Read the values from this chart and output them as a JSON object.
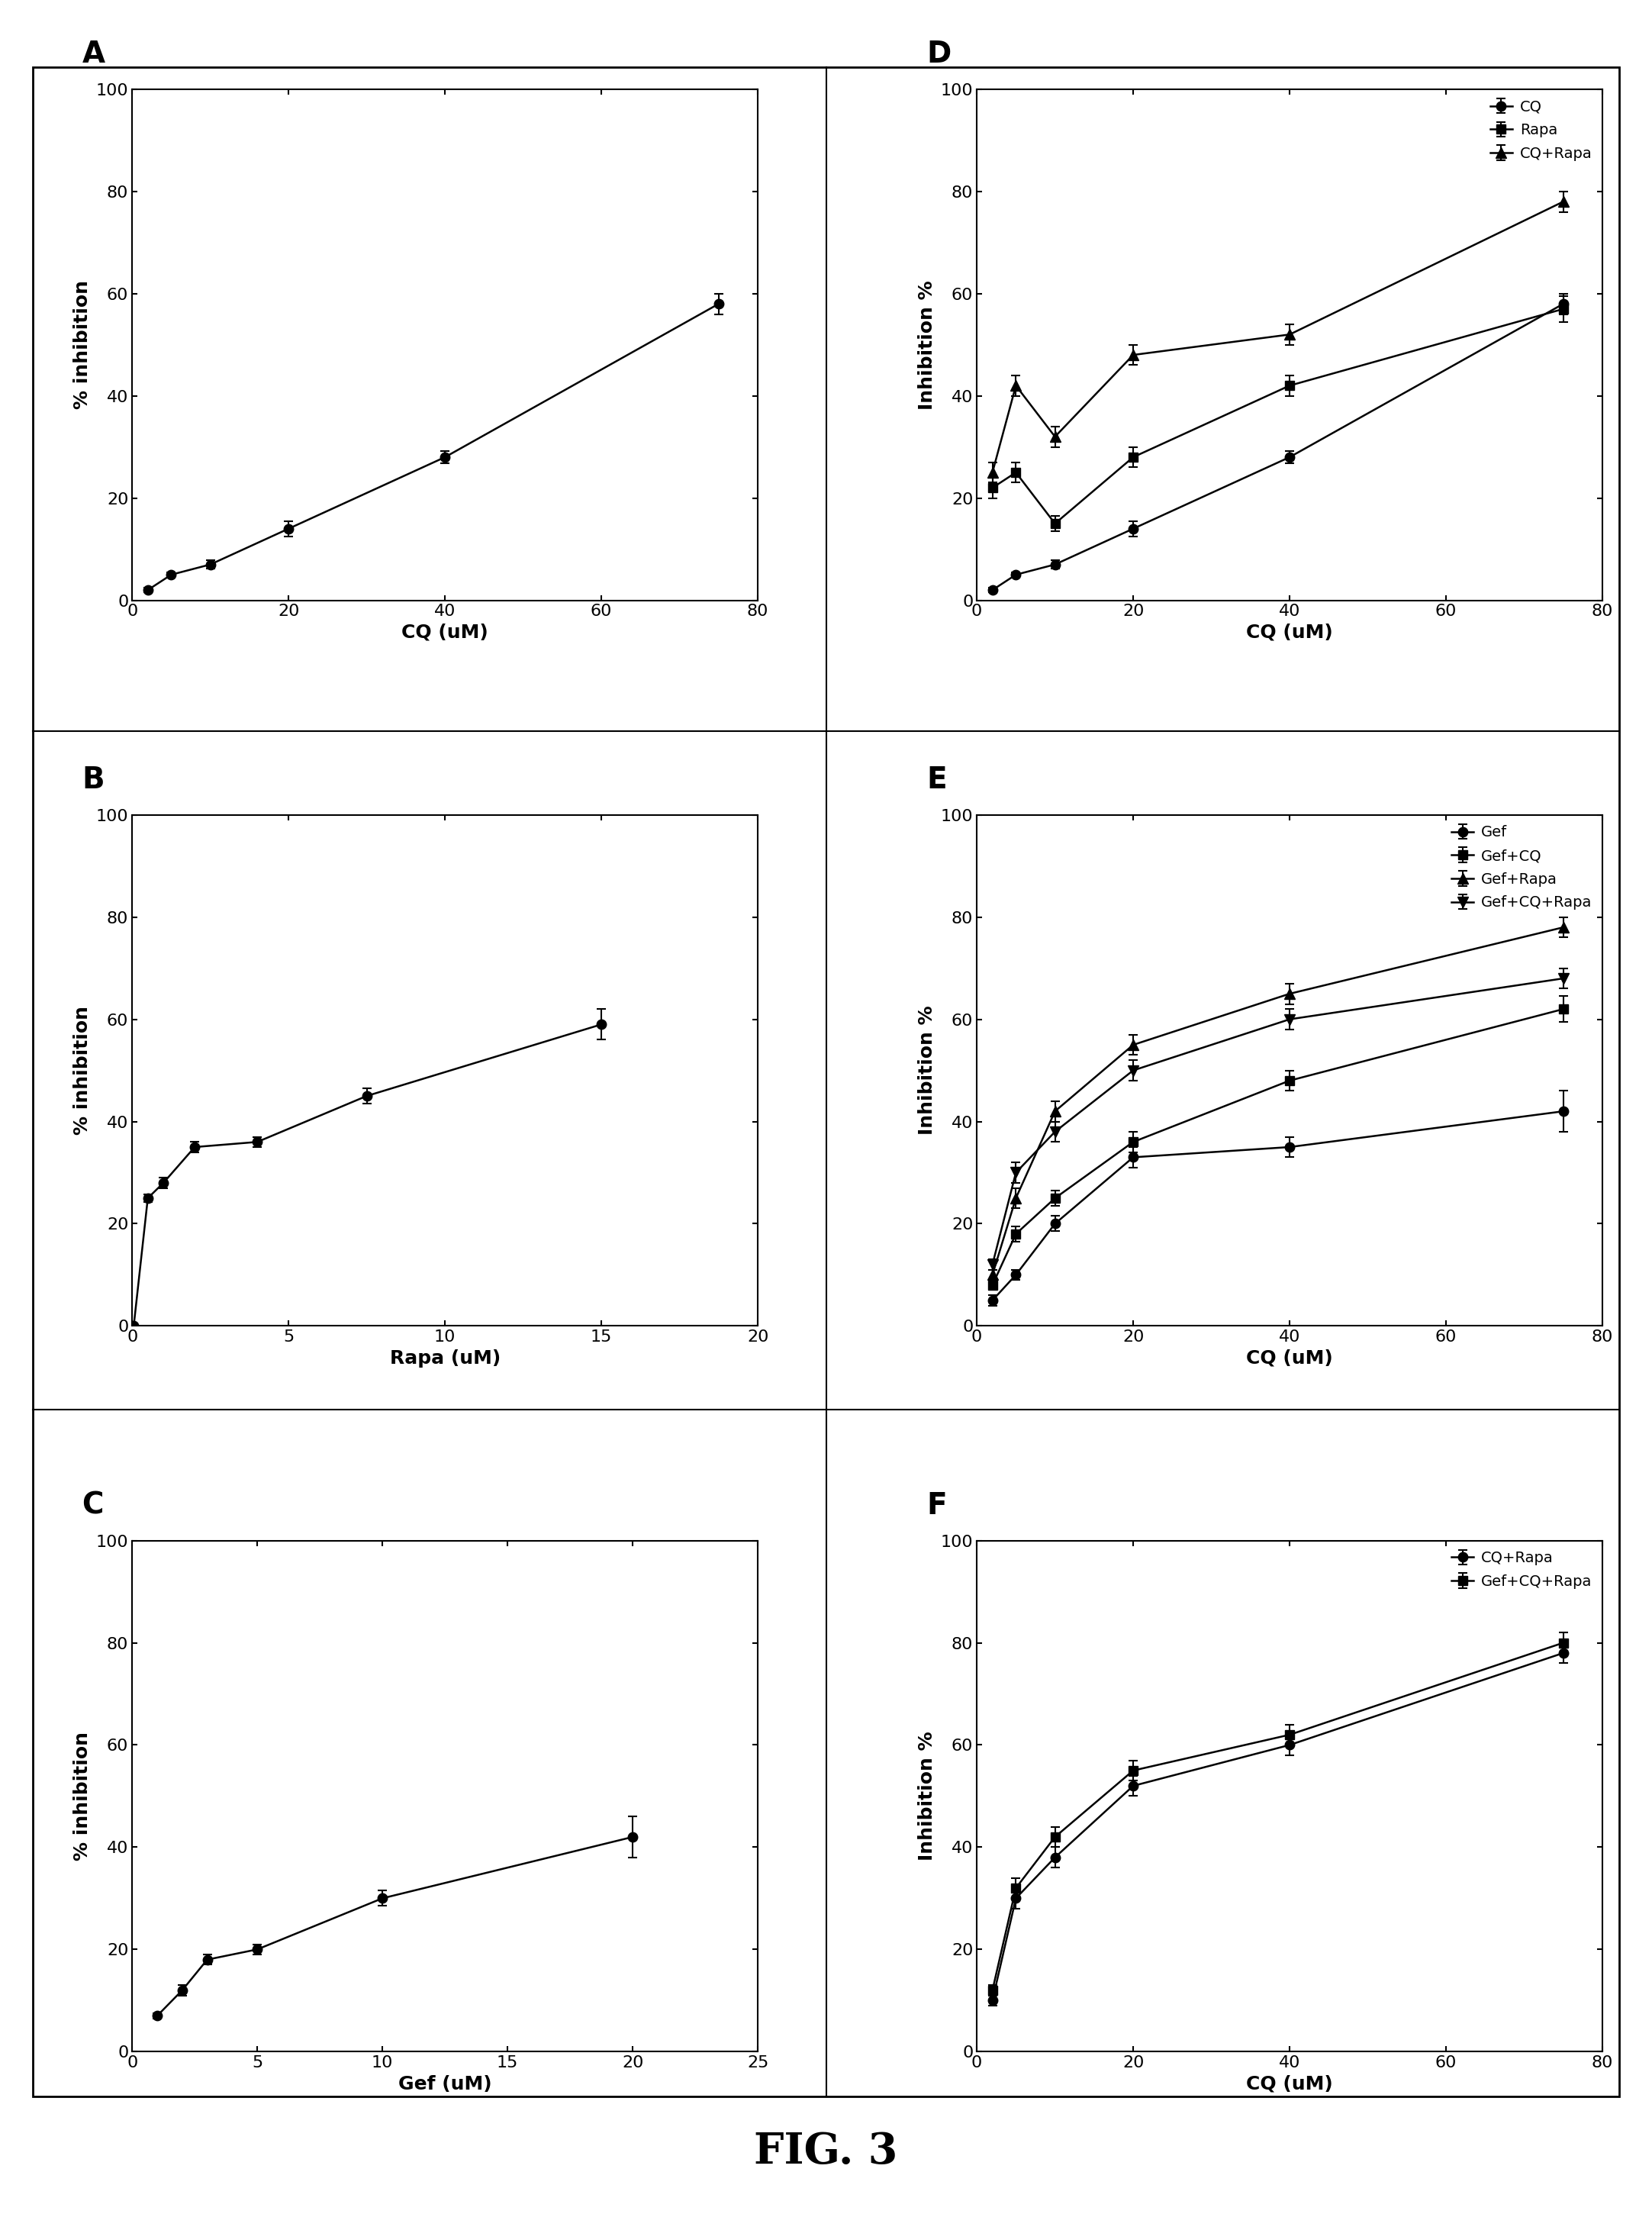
{
  "panel_A": {
    "label": "A",
    "xlabel": "CQ (uM)",
    "ylabel": "% inhibition",
    "xlim": [
      0,
      80
    ],
    "ylim": [
      0,
      100
    ],
    "xticks": [
      0,
      20,
      40,
      60,
      80
    ],
    "yticks": [
      0,
      20,
      40,
      60,
      80,
      100
    ],
    "series": [
      {
        "x": [
          2,
          5,
          10,
          20,
          40,
          75
        ],
        "y": [
          2,
          5,
          7,
          14,
          28,
          58
        ],
        "yerr": [
          0.5,
          0.5,
          0.8,
          1.5,
          1.2,
          2.0
        ],
        "marker": "o",
        "color": "#000000"
      }
    ]
  },
  "panel_B": {
    "label": "B",
    "xlabel": "Rapa (uM)",
    "ylabel": "% inhibition",
    "xlim": [
      0,
      20
    ],
    "ylim": [
      0,
      100
    ],
    "xticks": [
      0,
      5,
      10,
      15,
      20
    ],
    "yticks": [
      0,
      20,
      40,
      60,
      80,
      100
    ],
    "series": [
      {
        "x": [
          0.05,
          0.5,
          1,
          2,
          4,
          7.5,
          15
        ],
        "y": [
          0,
          25,
          28,
          35,
          36,
          45,
          59
        ],
        "yerr": [
          0.3,
          0.8,
          1.0,
          1.0,
          1.0,
          1.5,
          3.0
        ],
        "marker": "o",
        "color": "#000000"
      }
    ]
  },
  "panel_C": {
    "label": "C",
    "xlabel": "Gef (uM)",
    "ylabel": "% inhibition",
    "xlim": [
      0,
      25
    ],
    "ylim": [
      0,
      100
    ],
    "xticks": [
      0,
      5,
      10,
      15,
      20,
      25
    ],
    "yticks": [
      0,
      20,
      40,
      60,
      80,
      100
    ],
    "series": [
      {
        "x": [
          1,
          2,
          3,
          5,
          10,
          20
        ],
        "y": [
          7,
          12,
          18,
          20,
          30,
          42
        ],
        "yerr": [
          0.5,
          1.0,
          1.0,
          1.0,
          1.5,
          4.0
        ],
        "marker": "o",
        "color": "#000000"
      }
    ]
  },
  "panel_D": {
    "label": "D",
    "xlabel": "CQ (uM)",
    "ylabel": "Inhibition %",
    "xlim": [
      0,
      80
    ],
    "ylim": [
      0,
      100
    ],
    "xticks": [
      0,
      20,
      40,
      60,
      80
    ],
    "yticks": [
      0,
      20,
      40,
      60,
      80,
      100
    ],
    "legend_loc": "upper right",
    "series": [
      {
        "label": "CQ",
        "x": [
          2,
          5,
          10,
          20,
          40,
          75
        ],
        "y": [
          2,
          5,
          7,
          14,
          28,
          58
        ],
        "yerr": [
          0.5,
          0.5,
          0.8,
          1.5,
          1.2,
          2.0
        ],
        "marker": "o",
        "color": "#000000"
      },
      {
        "label": "Rapa",
        "x": [
          2,
          5,
          10,
          20,
          40,
          75
        ],
        "y": [
          22,
          25,
          15,
          28,
          42,
          57
        ],
        "yerr": [
          2.0,
          2.0,
          1.5,
          2.0,
          2.0,
          2.5
        ],
        "marker": "s",
        "color": "#000000"
      },
      {
        "label": "CQ+Rapa",
        "x": [
          2,
          5,
          10,
          20,
          40,
          75
        ],
        "y": [
          25,
          42,
          32,
          48,
          52,
          78
        ],
        "yerr": [
          2.0,
          2.0,
          2.0,
          2.0,
          2.0,
          2.0
        ],
        "marker": "^",
        "color": "#000000"
      }
    ]
  },
  "panel_E": {
    "label": "E",
    "xlabel": "CQ (uM)",
    "ylabel": "Inhibition %",
    "xlim": [
      0,
      80
    ],
    "ylim": [
      0,
      100
    ],
    "xticks": [
      0,
      20,
      40,
      60,
      80
    ],
    "yticks": [
      0,
      20,
      40,
      60,
      80,
      100
    ],
    "legend_loc": "upper right",
    "series": [
      {
        "label": "Gef",
        "x": [
          2,
          5,
          10,
          20,
          40,
          75
        ],
        "y": [
          5,
          10,
          20,
          33,
          35,
          42
        ],
        "yerr": [
          1.0,
          1.0,
          1.5,
          2.0,
          2.0,
          4.0
        ],
        "marker": "o",
        "color": "#000000"
      },
      {
        "label": "Gef+CQ",
        "x": [
          2,
          5,
          10,
          20,
          40,
          75
        ],
        "y": [
          8,
          18,
          25,
          36,
          48,
          62
        ],
        "yerr": [
          1.0,
          1.5,
          1.5,
          2.0,
          2.0,
          2.5
        ],
        "marker": "s",
        "color": "#000000"
      },
      {
        "label": "Gef+Rapa",
        "x": [
          2,
          5,
          10,
          20,
          40,
          75
        ],
        "y": [
          10,
          25,
          42,
          55,
          65,
          78
        ],
        "yerr": [
          1.0,
          2.0,
          2.0,
          2.0,
          2.0,
          2.0
        ],
        "marker": "^",
        "color": "#000000"
      },
      {
        "label": "Gef+CQ+Rapa",
        "x": [
          2,
          5,
          10,
          20,
          40,
          75
        ],
        "y": [
          12,
          30,
          38,
          50,
          60,
          68
        ],
        "yerr": [
          1.0,
          2.0,
          2.0,
          2.0,
          2.0,
          2.0
        ],
        "marker": "v",
        "color": "#000000"
      }
    ]
  },
  "panel_F": {
    "label": "F",
    "xlabel": "CQ (uM)",
    "ylabel": "Inhibition %",
    "xlim": [
      0,
      80
    ],
    "ylim": [
      0,
      100
    ],
    "xticks": [
      0,
      20,
      40,
      60,
      80
    ],
    "yticks": [
      0,
      20,
      40,
      60,
      80,
      100
    ],
    "legend_loc": "upper right",
    "series": [
      {
        "label": "CQ+Rapa",
        "x": [
          2,
          5,
          10,
          20,
          40,
          75
        ],
        "y": [
          10,
          30,
          38,
          52,
          60,
          78
        ],
        "yerr": [
          1.0,
          2.0,
          2.0,
          2.0,
          2.0,
          2.0
        ],
        "marker": "o",
        "color": "#000000"
      },
      {
        "label": "Gef+CQ+Rapa",
        "x": [
          2,
          5,
          10,
          20,
          40,
          75
        ],
        "y": [
          12,
          32,
          42,
          55,
          62,
          80
        ],
        "yerr": [
          1.0,
          2.0,
          2.0,
          2.0,
          2.0,
          2.0
        ],
        "marker": "s",
        "color": "#000000"
      }
    ]
  },
  "fig_title": "FIG. 3",
  "background_color": "#ffffff",
  "line_color": "#000000"
}
